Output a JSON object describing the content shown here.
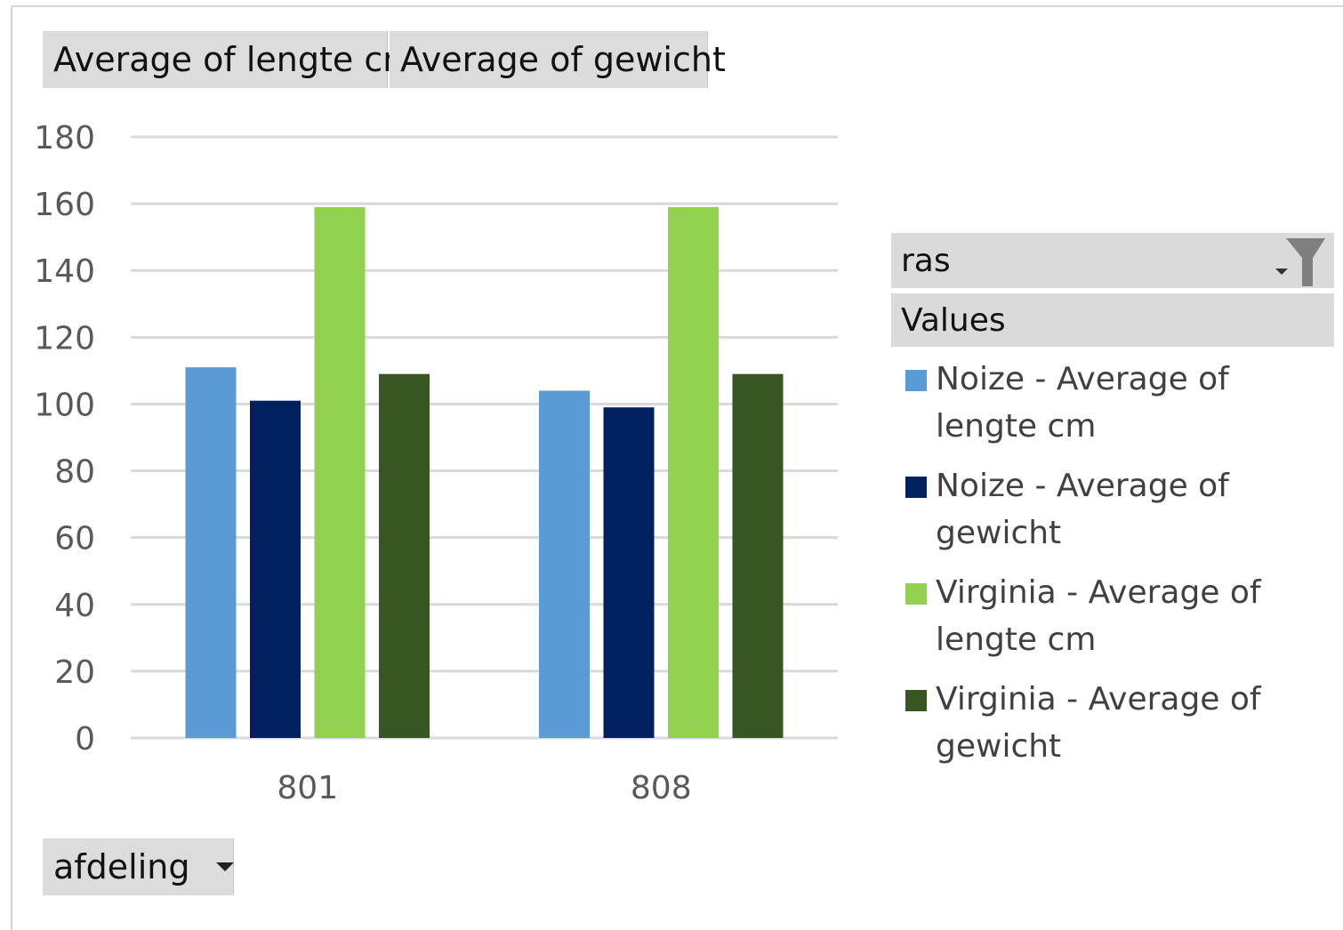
{
  "field_buttons": {
    "lengte": "Average of lengte cm",
    "gewicht": "Average of gewicht",
    "afdeling": "afdeling"
  },
  "legend": {
    "field": "ras",
    "values_header": "Values",
    "filter_icon": "funnel-filter-icon"
  },
  "colors": {
    "noize_lengte": "#5b9bd5",
    "noize_gewicht": "#002060",
    "virginia_lengte": "#92d050",
    "virginia_gewicht": "#375623"
  },
  "chart_data": {
    "type": "bar",
    "categories": [
      "801",
      "808"
    ],
    "series": [
      {
        "name": "Noize - Average of lengte cm",
        "values": [
          111,
          104
        ]
      },
      {
        "name": "Noize - Average of gewicht",
        "values": [
          101,
          99
        ]
      },
      {
        "name": "Virginia - Average of lengte cm",
        "values": [
          159,
          159
        ]
      },
      {
        "name": "Virginia - Average of gewicht",
        "values": [
          109,
          109
        ]
      }
    ],
    "xlabel": "",
    "ylabel": "",
    "ylim": [
      0,
      180
    ],
    "y_ticks": [
      0,
      20,
      40,
      60,
      80,
      100,
      120,
      140,
      160,
      180
    ],
    "grid": true,
    "legend_position": "right"
  }
}
